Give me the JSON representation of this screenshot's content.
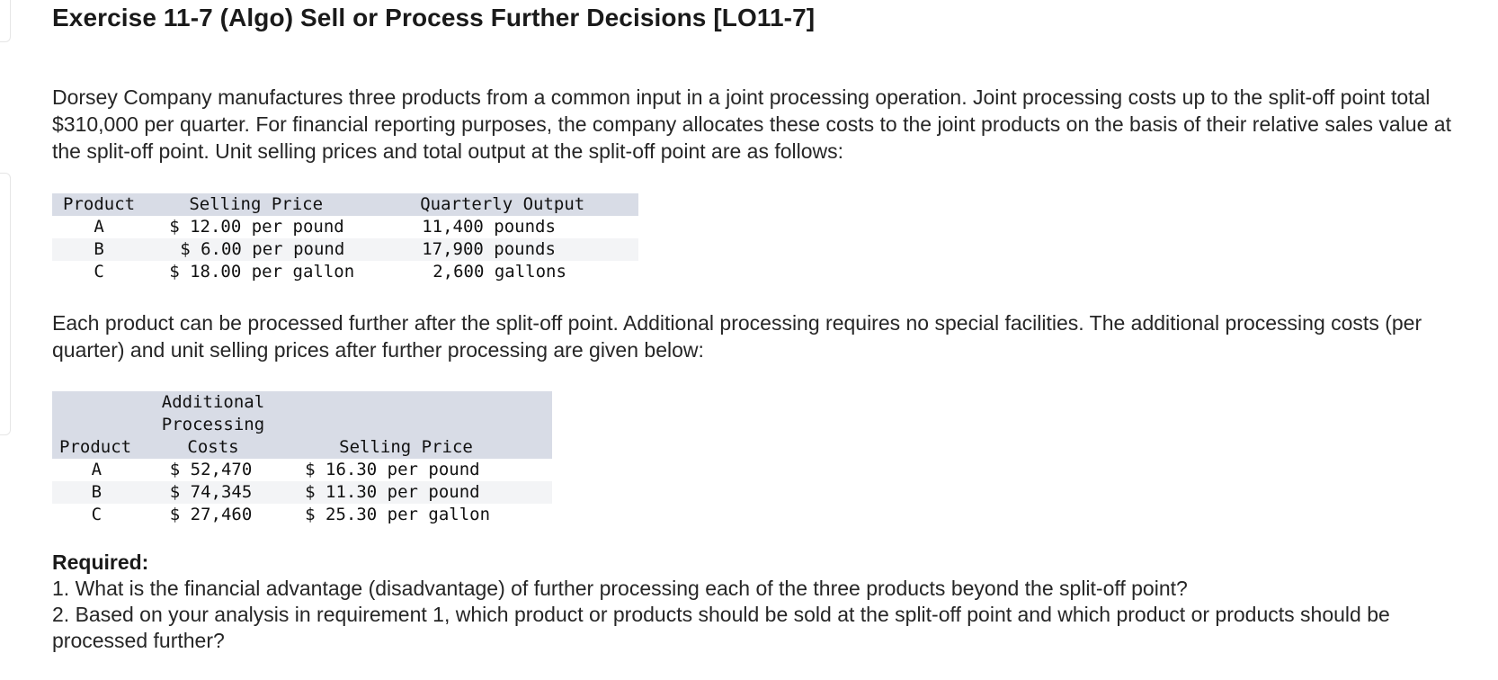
{
  "title": "Exercise 11-7 (Algo) Sell or Process Further Decisions [LO11-7]",
  "intro": "Dorsey Company manufactures three products from a common input in a joint processing operation. Joint processing costs up to the split-off point total $310,000 per quarter. For financial reporting purposes, the company allocates these costs to the joint products on the basis of their relative sales value at the split-off point. Unit selling prices and total output at the split-off point are as follows:",
  "table1": {
    "headers": [
      "Product",
      "Selling Price",
      "Quarterly Output"
    ],
    "rows": [
      [
        "A",
        "$ 12.00 per pound",
        "11,400 pounds"
      ],
      [
        "B",
        "$ 6.00 per pound",
        "17,900 pounds"
      ],
      [
        "C",
        "$ 18.00 per gallon",
        "2,600 gallons"
      ]
    ]
  },
  "middle": "Each product can be processed further after the split-off point. Additional processing requires no special facilities. The additional processing costs (per quarter) and unit selling prices after further processing are given below:",
  "table2": {
    "headers": [
      "Product",
      "Additional Processing Costs",
      "Selling Price"
    ],
    "header_lines": [
      "Additional",
      "Processing",
      "Costs"
    ],
    "rows": [
      [
        "A",
        "$ 52,470",
        "$ 16.30 per pound"
      ],
      [
        "B",
        "$ 74,345",
        "$ 11.30 per pound"
      ],
      [
        "C",
        "$ 27,460",
        "$ 25.30 per gallon"
      ]
    ]
  },
  "required": {
    "heading": "Required:",
    "items": [
      "1. What is the financial advantage (disadvantage) of further processing each of the three products beyond the split-off point?",
      "2. Based on your analysis in requirement 1, which product or products should be sold at the split-off point and which product or products should be processed further?"
    ]
  },
  "colors": {
    "header_band": "#d8dce6",
    "alt_row": "#f3f4f6",
    "text": "#262626"
  }
}
